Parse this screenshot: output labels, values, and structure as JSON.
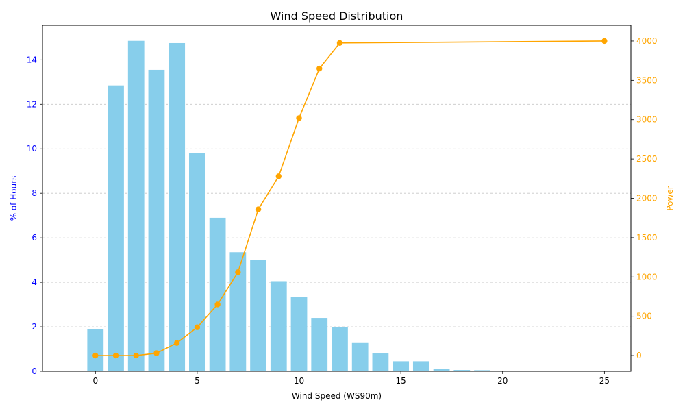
{
  "chart_data": {
    "type": "bar",
    "title": "Wind Speed Distribution",
    "xlabel": "Wind Speed (WS90m)",
    "ylabel": "% of Hours",
    "y2label": "Power",
    "xlim": [
      -2.6,
      26.3
    ],
    "ylim": [
      0,
      15.55
    ],
    "y2lim": [
      -200,
      4200
    ],
    "xticks": [
      0,
      5,
      10,
      15,
      20,
      25
    ],
    "yticks": [
      0,
      2,
      4,
      6,
      8,
      10,
      12,
      14
    ],
    "y2ticks": [
      0,
      500,
      1000,
      1500,
      2000,
      2500,
      3000,
      3500,
      4000
    ],
    "grid": "y-dashed",
    "bar_series": {
      "name": "% of Hours",
      "color": "#87CEEB",
      "x": [
        -1,
        0,
        1,
        2,
        3,
        4,
        5,
        6,
        7,
        8,
        9,
        10,
        11,
        12,
        13,
        14,
        15,
        16,
        17,
        18,
        19,
        20,
        21,
        22
      ],
      "values": [
        0.02,
        1.9,
        12.85,
        14.85,
        13.55,
        14.75,
        9.8,
        6.9,
        5.35,
        5.0,
        4.05,
        3.35,
        2.4,
        2.0,
        1.3,
        0.8,
        0.45,
        0.45,
        0.1,
        0.06,
        0.05,
        0.03,
        0.02,
        0.02
      ]
    },
    "line_series": {
      "name": "Power",
      "color": "#FFA500",
      "x": [
        0,
        1,
        2,
        3,
        4,
        5,
        6,
        7,
        8,
        9,
        10,
        11,
        12,
        25
      ],
      "values": [
        0,
        0,
        0,
        30,
        160,
        360,
        650,
        1060,
        1860,
        2280,
        3020,
        3650,
        3975,
        4000
      ]
    },
    "left_axis_color": "#0000FF",
    "right_axis_color": "#FFA500"
  }
}
